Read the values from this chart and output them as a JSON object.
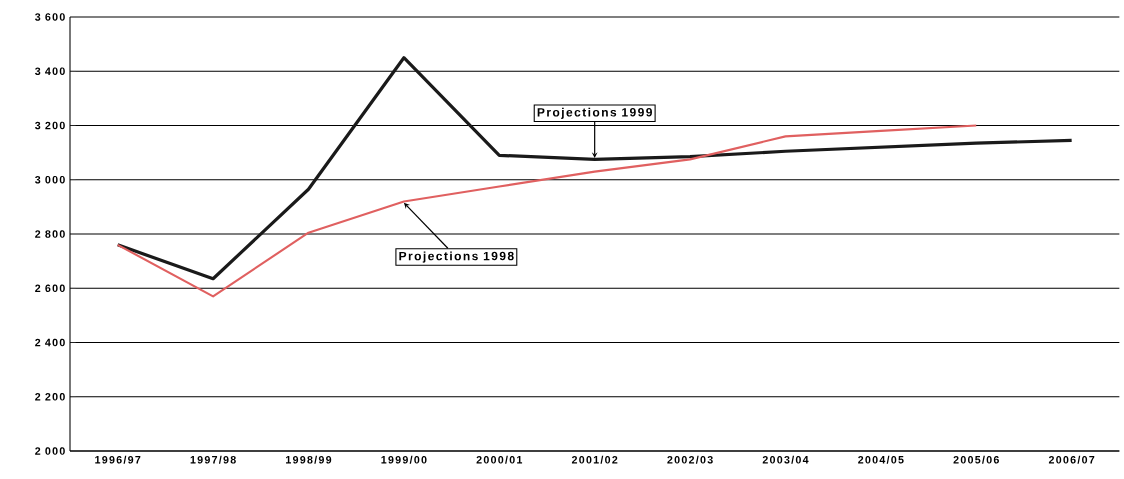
{
  "chart_data": {
    "type": "line",
    "categories": [
      "1996/97",
      "1997/98",
      "1998/99",
      "1999/00",
      "2000/01",
      "2001/02",
      "2002/03",
      "2003/04",
      "2004/05",
      "2005/06",
      "2006/07"
    ],
    "series": [
      {
        "color": "#1a1a1a",
        "values": [
          2760,
          2635,
          2965,
          3450,
          3090,
          3075,
          3085,
          3105,
          3120,
          3135,
          3145
        ]
      },
      {
        "color": "#e06060",
        "values": [
          2760,
          2570,
          2805,
          2920,
          2975,
          3030,
          3075,
          3160,
          3180,
          3200,
          null
        ]
      }
    ],
    "ylim": [
      2000,
      3600
    ],
    "yticks": [
      {
        "value": 2000,
        "label": "2 000"
      },
      {
        "value": 2200,
        "label": "2 200"
      },
      {
        "value": 2400,
        "label": "2 400"
      },
      {
        "value": 2600,
        "label": "2 600"
      },
      {
        "value": 2800,
        "label": "2 800"
      },
      {
        "value": 3000,
        "label": "3 000"
      },
      {
        "value": 3200,
        "label": "3 200"
      },
      {
        "value": 3400,
        "label": "3 400"
      },
      {
        "value": 3600,
        "label": "3 600"
      }
    ],
    "grid": "y",
    "line_style": "solid",
    "marker": "none",
    "annotations": [
      {
        "text": "Projections 1999",
        "x": "2001/02",
        "y": 3080
      },
      {
        "text": "Projections 1998",
        "x": "1999/00",
        "y": 2915
      }
    ]
  }
}
